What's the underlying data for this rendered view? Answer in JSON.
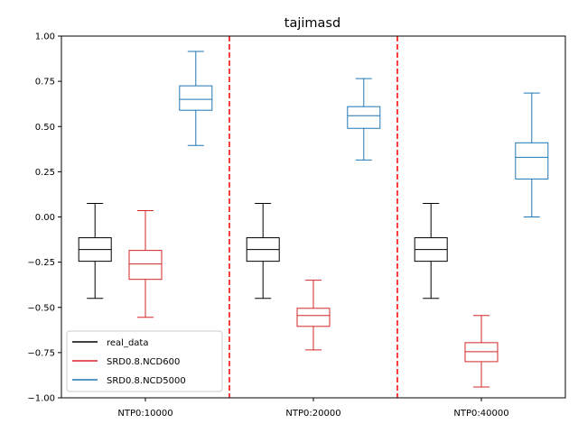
{
  "chart_data": {
    "type": "boxplot",
    "title": "tajimasd",
    "xlabel": "",
    "ylabel": "",
    "ylim": [
      -1.0,
      1.0
    ],
    "yticks": [
      -1.0,
      -0.75,
      -0.5,
      -0.25,
      0.0,
      0.25,
      0.5,
      0.75,
      1.0
    ],
    "ytick_labels": [
      "−1.00",
      "−0.75",
      "−0.50",
      "−0.25",
      "0.00",
      "0.25",
      "0.50",
      "0.75",
      "1.00"
    ],
    "categories": [
      "NTP0:10000",
      "NTP0:20000",
      "NTP0:40000"
    ],
    "separators_between_groups": true,
    "separator_color": "#ff0000",
    "grid": false,
    "legend_placement": "lower-left",
    "series": [
      {
        "name": "real_data",
        "color": "#000000",
        "boxes": [
          {
            "whislo": -0.45,
            "q1": -0.245,
            "med": -0.18,
            "q3": -0.115,
            "whishi": 0.075
          },
          {
            "whislo": -0.45,
            "q1": -0.245,
            "med": -0.18,
            "q3": -0.115,
            "whishi": 0.075
          },
          {
            "whislo": -0.45,
            "q1": -0.245,
            "med": -0.18,
            "q3": -0.115,
            "whishi": 0.075
          }
        ]
      },
      {
        "name": "SRD0.8.NCD600",
        "color": "#d62728",
        "boxes": [
          {
            "whislo": -0.555,
            "q1": -0.345,
            "med": -0.26,
            "q3": -0.185,
            "whishi": 0.035
          },
          {
            "whislo": -0.735,
            "q1": -0.605,
            "med": -0.545,
            "q3": -0.505,
            "whishi": -0.35
          },
          {
            "whislo": -0.94,
            "q1": -0.8,
            "med": -0.745,
            "q3": -0.695,
            "whishi": -0.545
          }
        ]
      },
      {
        "name": "SRD0.8.NCD5000",
        "color": "#1f77b4",
        "boxes": [
          {
            "whislo": 0.395,
            "q1": 0.59,
            "med": 0.65,
            "q3": 0.725,
            "whishi": 0.915
          },
          {
            "whislo": 0.315,
            "q1": 0.49,
            "med": 0.56,
            "q3": 0.61,
            "whishi": 0.765
          },
          {
            "whislo": 0.0,
            "q1": 0.21,
            "med": 0.33,
            "q3": 0.41,
            "whishi": 0.685
          }
        ]
      }
    ]
  }
}
